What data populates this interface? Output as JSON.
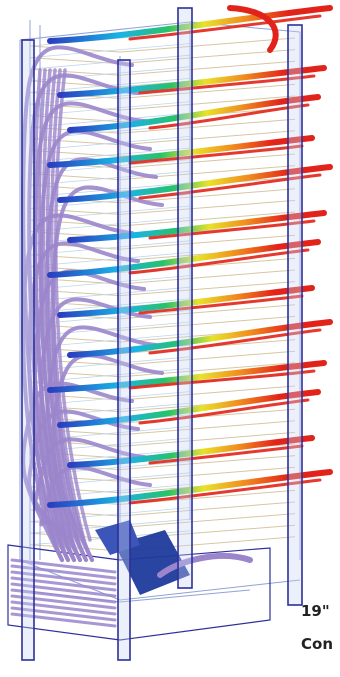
{
  "figure": {
    "caption_lines": [
      "19\"",
      "Con"
    ]
  },
  "colors": {
    "background": "#ffffff",
    "frame_blue": "#2d2f9a",
    "post_fill": "#c9d3f0",
    "shelf_line": "#d7c7a3",
    "airflow_purple": "#9b86cc",
    "hot_red": "#e2231a",
    "fan_blue": "#1f3a9c",
    "gradient_stops": [
      "#2a3fbf",
      "#19b3e6",
      "#27c26a",
      "#e8e22a",
      "#f08a1e",
      "#e2231a"
    ]
  }
}
